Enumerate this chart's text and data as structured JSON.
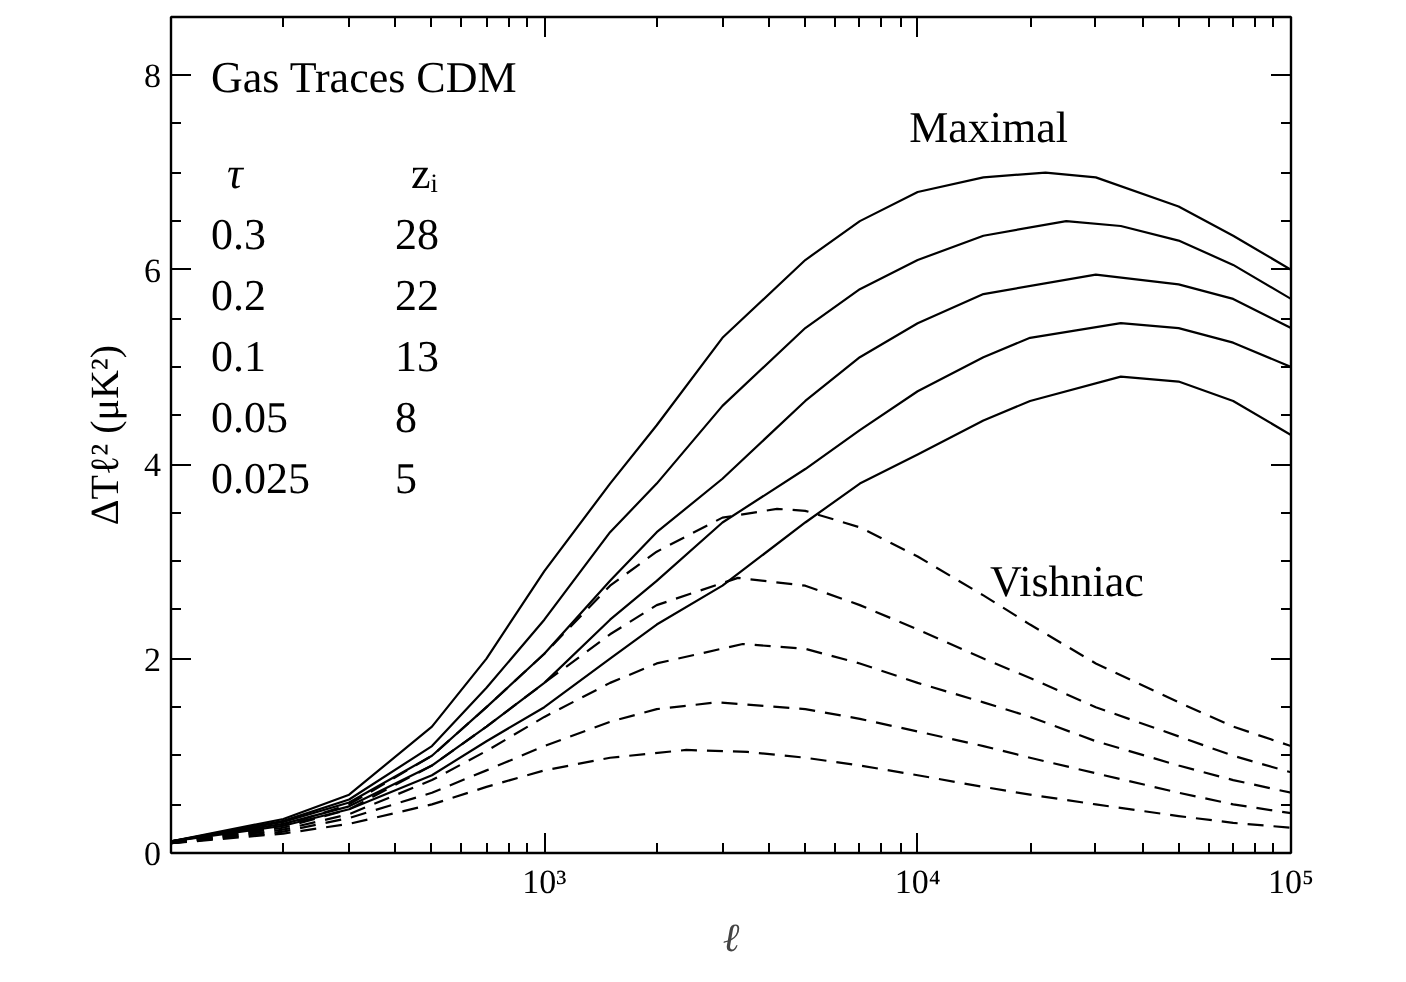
{
  "chart_data": {
    "type": "line",
    "title": "Gas Traces CDM",
    "xlabel": "ℓ",
    "ylabel": "ΔTℓ² (μK²)",
    "log": "x",
    "grid": false,
    "marker": "none",
    "xlim": [
      100,
      100000
    ],
    "ylim": [
      0,
      8.6
    ],
    "xticks": [
      {
        "value": 200,
        "label": null
      },
      {
        "value": 300,
        "label": null
      },
      {
        "value": 400,
        "label": null
      },
      {
        "value": 500,
        "label": null
      },
      {
        "value": 600,
        "label": null
      },
      {
        "value": 700,
        "label": null
      },
      {
        "value": 800,
        "label": null
      },
      {
        "value": 900,
        "label": null
      },
      {
        "value": 1000,
        "label": "10³"
      },
      {
        "value": 2000,
        "label": null
      },
      {
        "value": 3000,
        "label": null
      },
      {
        "value": 4000,
        "label": null
      },
      {
        "value": 5000,
        "label": null
      },
      {
        "value": 6000,
        "label": null
      },
      {
        "value": 7000,
        "label": null
      },
      {
        "value": 8000,
        "label": null
      },
      {
        "value": 9000,
        "label": null
      },
      {
        "value": 10000,
        "label": "10⁴"
      },
      {
        "value": 20000,
        "label": null
      },
      {
        "value": 30000,
        "label": null
      },
      {
        "value": 40000,
        "label": null
      },
      {
        "value": 50000,
        "label": null
      },
      {
        "value": 60000,
        "label": null
      },
      {
        "value": 70000,
        "label": null
      },
      {
        "value": 80000,
        "label": null
      },
      {
        "value": 90000,
        "label": null
      },
      {
        "value": 100000,
        "label": "10⁵"
      }
    ],
    "yticks": [
      0,
      {
        "value": 0.5,
        "label": null
      },
      {
        "value": 1,
        "label": null
      },
      {
        "value": 1.5,
        "label": null
      },
      2,
      {
        "value": 2.5,
        "label": null
      },
      {
        "value": 3,
        "label": null
      },
      {
        "value": 3.5,
        "label": null
      },
      4,
      {
        "value": 4.5,
        "label": null
      },
      {
        "value": 5,
        "label": null
      },
      {
        "value": 5.5,
        "label": null
      },
      6,
      {
        "value": 6.5,
        "label": null
      },
      {
        "value": 7,
        "label": null
      },
      {
        "value": 7.5,
        "label": null
      },
      8
    ],
    "annotations": [
      "τ",
      "zᵢ",
      "0.3",
      "28",
      "0.2",
      "22",
      "0.1",
      "13",
      "0.05",
      "8",
      "0.025",
      "5",
      "Maximal",
      "Vishniac"
    ],
    "series": [
      {
        "color": "#000000",
        "line_style": "solid",
        "x": [
          100,
          200,
          300,
          500,
          700,
          1000,
          1500,
          2000,
          3000,
          5000,
          7000,
          10000,
          15000,
          22000,
          30000,
          50000,
          70000,
          100000
        ],
        "values": [
          0.12,
          0.35,
          0.6,
          1.3,
          2.0,
          2.9,
          3.8,
          4.4,
          5.3,
          6.1,
          6.5,
          6.8,
          6.95,
          7.0,
          6.95,
          6.65,
          6.35,
          6.0
        ]
      },
      {
        "color": "#000000",
        "line_style": "solid",
        "x": [
          100,
          200,
          300,
          500,
          700,
          1000,
          1500,
          2000,
          3000,
          5000,
          7000,
          10000,
          15000,
          25000,
          35000,
          50000,
          70000,
          100000
        ],
        "values": [
          0.12,
          0.33,
          0.55,
          1.1,
          1.7,
          2.4,
          3.3,
          3.8,
          4.6,
          5.4,
          5.8,
          6.1,
          6.35,
          6.5,
          6.45,
          6.3,
          6.05,
          5.7
        ]
      },
      {
        "color": "#000000",
        "line_style": "solid",
        "x": [
          100,
          200,
          300,
          500,
          700,
          1000,
          1500,
          2000,
          3000,
          5000,
          7000,
          10000,
          15000,
          30000,
          50000,
          70000,
          100000
        ],
        "values": [
          0.12,
          0.32,
          0.52,
          1.0,
          1.5,
          2.05,
          2.8,
          3.3,
          3.85,
          4.65,
          5.1,
          5.45,
          5.75,
          5.95,
          5.85,
          5.7,
          5.4
        ]
      },
      {
        "color": "#000000",
        "line_style": "solid",
        "x": [
          100,
          200,
          300,
          500,
          700,
          1000,
          1500,
          2000,
          3000,
          5000,
          7000,
          10000,
          15000,
          20000,
          35000,
          50000,
          70000,
          100000
        ],
        "values": [
          0.12,
          0.3,
          0.48,
          0.9,
          1.3,
          1.75,
          2.4,
          2.8,
          3.4,
          3.95,
          4.35,
          4.75,
          5.1,
          5.3,
          5.45,
          5.4,
          5.25,
          5.0
        ]
      },
      {
        "color": "#000000",
        "line_style": "solid",
        "x": [
          100,
          200,
          300,
          500,
          700,
          1000,
          1500,
          2000,
          3000,
          5000,
          7000,
          10000,
          15000,
          20000,
          35000,
          50000,
          70000,
          100000
        ],
        "values": [
          0.12,
          0.28,
          0.45,
          0.8,
          1.15,
          1.5,
          2.0,
          2.35,
          2.75,
          3.4,
          3.8,
          4.1,
          4.45,
          4.65,
          4.9,
          4.85,
          4.65,
          4.3
        ]
      },
      {
        "color": "#000000",
        "line_style": "dashed",
        "x": [
          100,
          200,
          300,
          500,
          700,
          1000,
          1500,
          2000,
          3000,
          4200,
          5000,
          7000,
          10000,
          15000,
          20000,
          30000,
          50000,
          70000,
          100000
        ],
        "values": [
          0.1,
          0.28,
          0.5,
          1.0,
          1.5,
          2.05,
          2.75,
          3.1,
          3.45,
          3.54,
          3.52,
          3.35,
          3.05,
          2.65,
          2.35,
          1.95,
          1.55,
          1.3,
          1.1
        ]
      },
      {
        "color": "#000000",
        "line_style": "dashed",
        "x": [
          100,
          200,
          300,
          500,
          700,
          1000,
          1500,
          2000,
          3300,
          5000,
          7000,
          10000,
          15000,
          20000,
          30000,
          50000,
          70000,
          100000
        ],
        "values": [
          0.1,
          0.26,
          0.45,
          0.9,
          1.3,
          1.75,
          2.25,
          2.55,
          2.83,
          2.75,
          2.55,
          2.3,
          2.0,
          1.8,
          1.5,
          1.2,
          1.0,
          0.83
        ]
      },
      {
        "color": "#000000",
        "line_style": "dashed",
        "x": [
          100,
          200,
          300,
          500,
          700,
          1000,
          1500,
          2000,
          3400,
          5000,
          7000,
          10000,
          15000,
          20000,
          30000,
          50000,
          70000,
          100000
        ],
        "values": [
          0.1,
          0.24,
          0.4,
          0.75,
          1.05,
          1.4,
          1.75,
          1.95,
          2.15,
          2.1,
          1.95,
          1.75,
          1.55,
          1.4,
          1.15,
          0.9,
          0.75,
          0.62
        ]
      },
      {
        "color": "#000000",
        "line_style": "dashed",
        "x": [
          100,
          200,
          300,
          500,
          700,
          1000,
          1500,
          2000,
          2900,
          5000,
          7000,
          10000,
          15000,
          20000,
          30000,
          50000,
          70000,
          100000
        ],
        "values": [
          0.1,
          0.22,
          0.36,
          0.62,
          0.85,
          1.1,
          1.35,
          1.48,
          1.55,
          1.48,
          1.38,
          1.25,
          1.1,
          0.98,
          0.82,
          0.62,
          0.5,
          0.41
        ]
      },
      {
        "color": "#000000",
        "line_style": "dashed",
        "x": [
          100,
          200,
          300,
          500,
          700,
          1000,
          1500,
          2400,
          3500,
          5000,
          7000,
          10000,
          15000,
          20000,
          30000,
          50000,
          70000,
          100000
        ],
        "values": [
          0.1,
          0.2,
          0.3,
          0.5,
          0.68,
          0.85,
          0.98,
          1.06,
          1.04,
          0.98,
          0.9,
          0.8,
          0.68,
          0.6,
          0.5,
          0.38,
          0.31,
          0.26
        ]
      }
    ]
  }
}
